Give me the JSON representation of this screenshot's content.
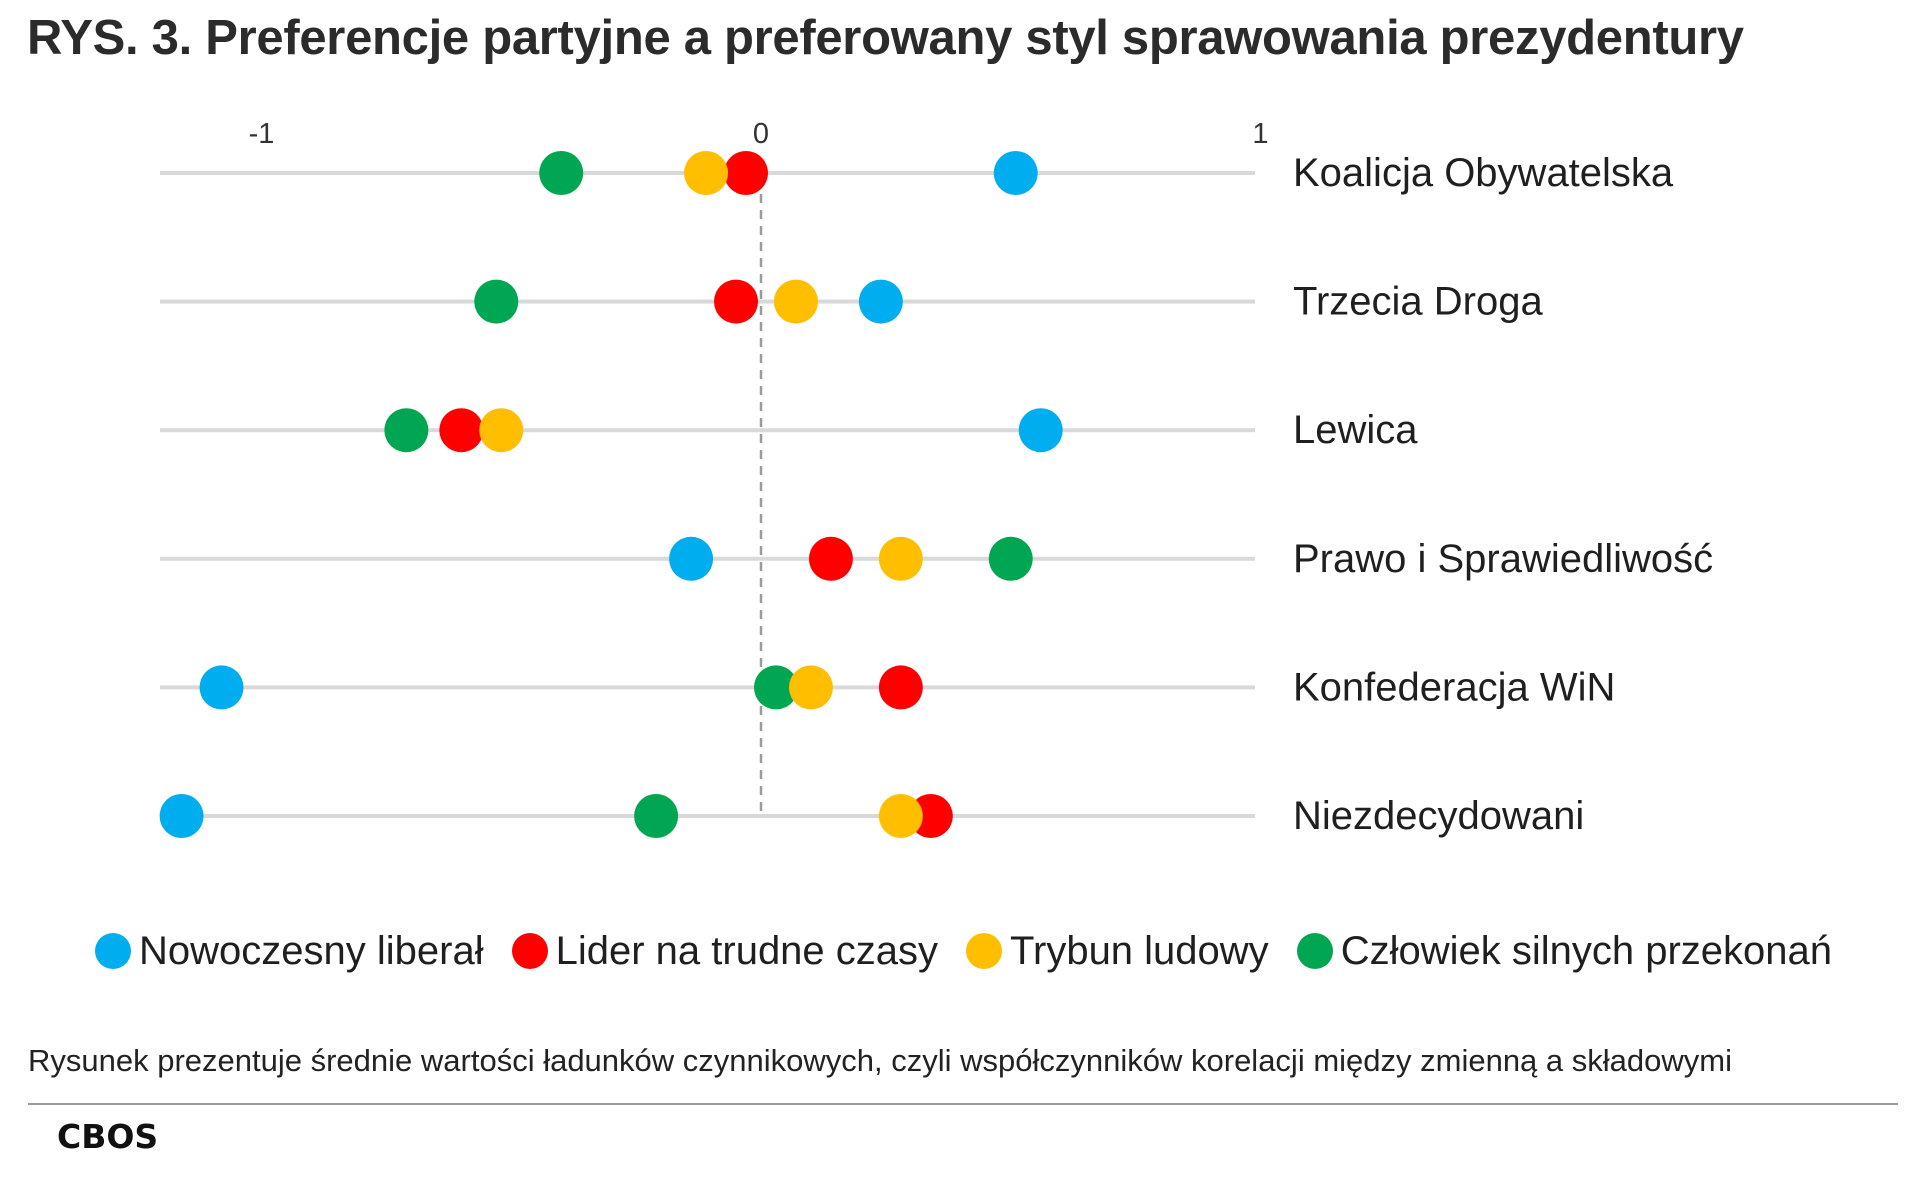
{
  "title": "RYS. 3. Preferencje partyjne a preferowany styl sprawowania prezydentury",
  "footnote": "Rysunek prezentuje średnie wartości ładunków czynnikowych, czyli współczynników korelacji między zmienną a składowymi",
  "source": "CBOS",
  "chart_data": {
    "type": "scatter",
    "title": "RYS. 3. Preferencje partyjne a preferowany styl sprawowania prezydentury",
    "xlim": [
      -1.2,
      1.0
    ],
    "x_ticks": [
      -1,
      0,
      1
    ],
    "x_tick_labels": [
      "-1",
      "0",
      "1"
    ],
    "reference_line": 0,
    "categories": [
      "Koalicja Obywatelska",
      "Trzecia Droga",
      "Lewica",
      "Prawo i Sprawiedliwość",
      "Konfederacja WiN",
      "Niezdecydowani"
    ],
    "legend_position": "bottom",
    "grid": false,
    "series": [
      {
        "name": "Nowoczesny liberał",
        "color": "#00AEEF",
        "values": [
          0.51,
          0.24,
          0.56,
          -0.14,
          -1.08,
          -1.16
        ]
      },
      {
        "name": "Lider na trudne czasy",
        "color": "#FF0000",
        "values": [
          -0.03,
          -0.05,
          -0.6,
          0.14,
          0.28,
          0.34
        ]
      },
      {
        "name": "Trybun ludowy",
        "color": "#FFBF00",
        "values": [
          -0.11,
          0.07,
          -0.52,
          0.28,
          0.1,
          0.28
        ]
      },
      {
        "name": "Człowiek silnych przekonań",
        "color": "#00A651",
        "values": [
          -0.4,
          -0.53,
          -0.71,
          0.5,
          0.03,
          -0.21
        ]
      }
    ]
  }
}
